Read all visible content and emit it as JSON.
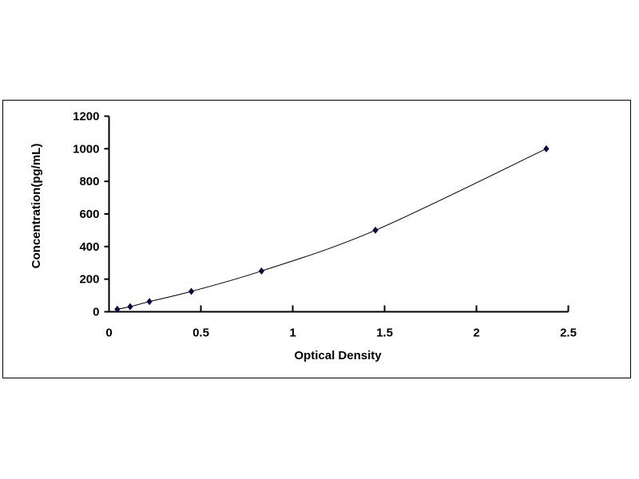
{
  "chart_data": {
    "type": "scatter",
    "title": "",
    "xlabel": "Optical Density",
    "ylabel": "Concentration(pg/mL)",
    "xlim": [
      0,
      2.5
    ],
    "ylim": [
      0,
      1200
    ],
    "xticks": [
      0,
      0.5,
      1,
      1.5,
      2,
      2.5
    ],
    "xtick_labels": [
      "0",
      "0.5",
      "1",
      "1.5",
      "2",
      "2.5"
    ],
    "yticks": [
      0,
      200,
      400,
      600,
      800,
      1000,
      1200
    ],
    "ytick_labels": [
      "0",
      "200",
      "400",
      "600",
      "800",
      "1000",
      "1200"
    ],
    "grid": false,
    "series": [
      {
        "x": [
          0.045,
          0.115,
          0.22,
          0.448,
          0.83,
          1.45,
          2.38
        ],
        "y": [
          15.6,
          31.25,
          62.5,
          125,
          250,
          500,
          1000
        ],
        "marker": "diamond",
        "fitted_curve": true,
        "color": "#0a0a4a"
      }
    ]
  }
}
